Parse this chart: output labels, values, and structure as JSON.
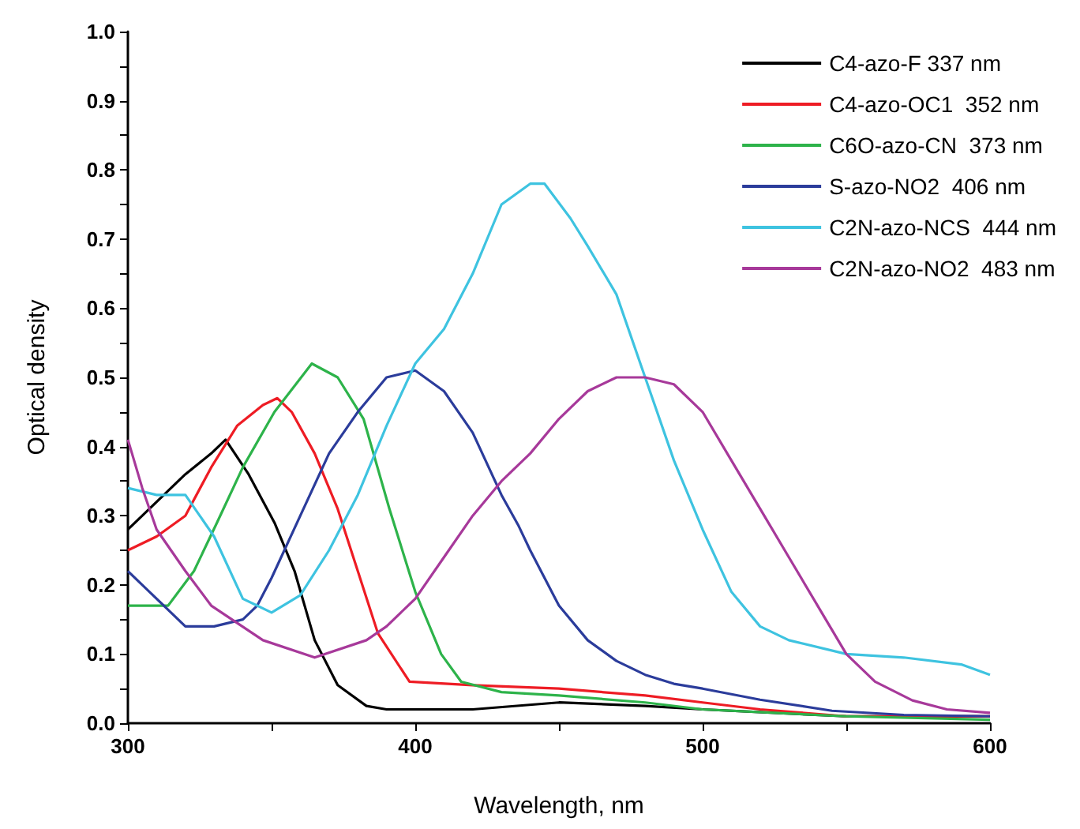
{
  "chart_data": {
    "type": "line",
    "xlabel": "Wavelength, nm",
    "ylabel": "Optical density",
    "xlim": [
      300,
      600
    ],
    "ylim": [
      0,
      1
    ],
    "xticks": [
      300,
      {
        "value": 350,
        "label": null
      },
      400,
      {
        "value": 450,
        "label": null
      },
      500,
      {
        "value": 550,
        "label": null
      },
      600
    ],
    "yticks": [
      {
        "value": 0,
        "label": "0.0"
      },
      {
        "value": 0.05,
        "label": null
      },
      {
        "value": 0.1,
        "label": "0.1"
      },
      {
        "value": 0.15,
        "label": null
      },
      {
        "value": 0.2,
        "label": "0.2"
      },
      {
        "value": 0.25,
        "label": null
      },
      {
        "value": 0.3,
        "label": "0.3"
      },
      {
        "value": 0.35,
        "label": null
      },
      {
        "value": 0.4,
        "label": "0.4"
      },
      {
        "value": 0.45,
        "label": null
      },
      {
        "value": 0.5,
        "label": "0.5"
      },
      {
        "value": 0.55,
        "label": null
      },
      {
        "value": 0.6,
        "label": "0.6"
      },
      {
        "value": 0.65,
        "label": null
      },
      {
        "value": 0.7,
        "label": "0.7"
      },
      {
        "value": 0.75,
        "label": null
      },
      {
        "value": 0.8,
        "label": "0.8"
      },
      {
        "value": 0.85,
        "label": null
      },
      {
        "value": 0.9,
        "label": "0.9"
      },
      {
        "value": 0.95,
        "label": null
      },
      {
        "value": 1,
        "label": "1.0"
      }
    ],
    "grid": false,
    "legend": "top right",
    "marker": "none",
    "line_style": "solid",
    "series": [
      {
        "name": "C4-azo-F 337 nm",
        "color": "#000000",
        "x": [
          300,
          310,
          320,
          329,
          334,
          342,
          351,
          358,
          365,
          373,
          383,
          390,
          400,
          420,
          450,
          480,
          500,
          550,
          600
        ],
        "values": [
          0.28,
          0.32,
          0.36,
          0.39,
          0.41,
          0.36,
          0.29,
          0.22,
          0.12,
          0.055,
          0.025,
          0.02,
          0.02,
          0.02,
          0.03,
          0.025,
          0.02,
          0.01,
          0.01
        ]
      },
      {
        "name": "C4-azo-OC1  352 nm",
        "color": "#ee1c24",
        "x": [
          300,
          310,
          320,
          329,
          338,
          347,
          352,
          357,
          365,
          373,
          380,
          387,
          398,
          420,
          450,
          480,
          500,
          520,
          550,
          600
        ],
        "values": [
          0.25,
          0.27,
          0.3,
          0.37,
          0.43,
          0.46,
          0.47,
          0.45,
          0.39,
          0.31,
          0.22,
          0.13,
          0.06,
          0.055,
          0.05,
          0.04,
          0.03,
          0.02,
          0.01,
          0.01
        ]
      },
      {
        "name": "C6O-azo-CN  373 nm",
        "color": "#2db34a",
        "x": [
          300,
          314,
          323,
          331,
          340,
          351,
          364,
          373,
          382,
          391,
          400,
          409,
          416,
          430,
          450,
          480,
          500,
          550,
          600
        ],
        "values": [
          0.17,
          0.17,
          0.22,
          0.29,
          0.37,
          0.45,
          0.52,
          0.5,
          0.44,
          0.31,
          0.19,
          0.1,
          0.06,
          0.045,
          0.04,
          0.03,
          0.02,
          0.01,
          0.005
        ]
      },
      {
        "name": "S-azo-NO2  406 nm",
        "color": "#2b3c9b",
        "x": [
          300,
          305,
          310,
          315,
          320,
          330,
          340,
          345,
          350,
          360,
          370,
          380,
          390,
          400,
          410,
          420,
          430,
          436,
          440,
          450,
          460,
          470,
          480,
          490,
          500,
          520,
          545,
          570,
          600
        ],
        "values": [
          0.22,
          0.2,
          0.18,
          0.16,
          0.14,
          0.14,
          0.15,
          0.17,
          0.21,
          0.3,
          0.39,
          0.45,
          0.5,
          0.51,
          0.48,
          0.42,
          0.33,
          0.285,
          0.25,
          0.17,
          0.12,
          0.09,
          0.07,
          0.057,
          0.05,
          0.034,
          0.018,
          0.012,
          0.01
        ]
      },
      {
        "name": "C2N-azo-NCS  444 nm",
        "color": "#3ec3e0",
        "x": [
          300,
          310,
          320,
          330,
          340,
          350,
          360,
          370,
          380,
          390,
          400,
          410,
          420,
          430,
          440,
          445,
          454,
          460,
          470,
          480,
          490,
          500,
          510,
          520,
          530,
          550,
          570,
          590,
          600
        ],
        "values": [
          0.34,
          0.33,
          0.33,
          0.27,
          0.18,
          0.16,
          0.185,
          0.25,
          0.33,
          0.43,
          0.52,
          0.57,
          0.65,
          0.75,
          0.78,
          0.78,
          0.73,
          0.69,
          0.62,
          0.5,
          0.38,
          0.28,
          0.19,
          0.14,
          0.12,
          0.1,
          0.095,
          0.085,
          0.07
        ]
      },
      {
        "name": "C2N-azo-NO2  483 nm",
        "color": "#a7399a",
        "x": [
          300,
          305,
          310,
          320,
          329,
          347,
          365,
          383,
          390,
          400,
          410,
          420,
          430,
          440,
          450,
          460,
          470,
          480,
          490,
          500,
          510,
          520,
          530,
          540,
          550,
          560,
          573,
          585,
          600
        ],
        "values": [
          0.41,
          0.34,
          0.28,
          0.22,
          0.17,
          0.12,
          0.095,
          0.12,
          0.14,
          0.18,
          0.24,
          0.3,
          0.35,
          0.39,
          0.44,
          0.48,
          0.5,
          0.5,
          0.49,
          0.45,
          0.38,
          0.31,
          0.24,
          0.17,
          0.1,
          0.06,
          0.033,
          0.02,
          0.015
        ]
      }
    ]
  }
}
